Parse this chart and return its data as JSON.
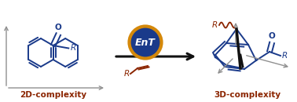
{
  "bg_color": "#ffffff",
  "blue_color": "#1a3a8a",
  "brown_red_color": "#8B2500",
  "arrow_color": "#909090",
  "ent_circle_fill": "#1a3a8a",
  "ent_circle_edge": "#d4880a",
  "ent_text": "EnT",
  "label_2d": "2D-complexity",
  "label_3d": "3D-complexity",
  "main_arrow_color": "#111111"
}
